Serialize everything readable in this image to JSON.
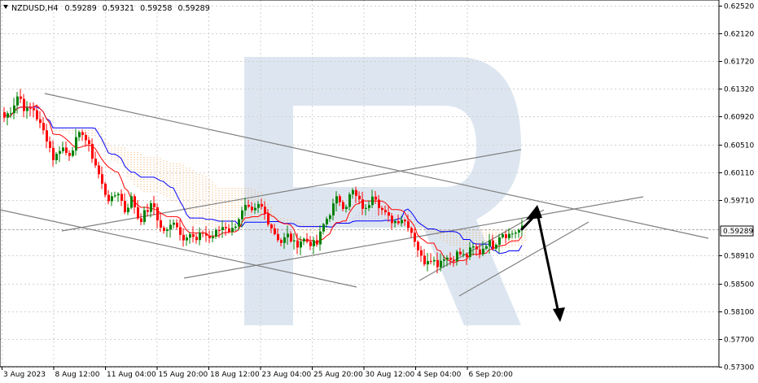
{
  "header": {
    "symbol": "NZDUSD,H4",
    "open": "0.59289",
    "high": "0.59321",
    "low": "0.59258",
    "close": "0.59289"
  },
  "chart_data": {
    "type": "candlestick",
    "title": "NZDUSD,H4",
    "ylim": [
      0.573,
      0.626
    ],
    "y_ticks": [
      "0.62520",
      "0.62120",
      "0.61720",
      "0.61320",
      "0.60920",
      "0.60510",
      "0.60110",
      "0.59710",
      "0.59289",
      "0.58910",
      "0.58500",
      "0.58100",
      "0.57700",
      "0.57300"
    ],
    "current_price": "0.59289",
    "x_ticks": [
      "3 Aug 2023",
      "8 Aug 12:00",
      "11 Aug 04:00",
      "15 Aug 20:00",
      "18 Aug 12:00",
      "23 Aug 04:00",
      "25 Aug 20:00",
      "30 Aug 12:00",
      "4 Sep 04:00",
      "6 Sep 20:00"
    ],
    "close_path": [
      0.609,
      0.6102,
      0.6125,
      0.6098,
      0.6105,
      0.608,
      0.606,
      0.6028,
      0.605,
      0.6035,
      0.6055,
      0.607,
      0.6045,
      0.6018,
      0.5985,
      0.5968,
      0.5985,
      0.5955,
      0.5975,
      0.594,
      0.5955,
      0.5965,
      0.593,
      0.5925,
      0.5945,
      0.5915,
      0.5925,
      0.591,
      0.5925,
      0.5915,
      0.5925,
      0.5935,
      0.5925,
      0.5945,
      0.596,
      0.595,
      0.5965,
      0.5945,
      0.5925,
      0.591,
      0.592,
      0.5905,
      0.5915,
      0.591,
      0.5905,
      0.5935,
      0.5955,
      0.5975,
      0.596,
      0.5985,
      0.5968,
      0.5955,
      0.5985,
      0.596,
      0.5945,
      0.594,
      0.5945,
      0.5935,
      0.591,
      0.588,
      0.589,
      0.5878,
      0.589,
      0.5885,
      0.5895,
      0.5888,
      0.5902,
      0.5895,
      0.591,
      0.5905,
      0.5925,
      0.592,
      0.5925,
      0.5929
    ],
    "colors": {
      "bull": "#008000",
      "bear": "#ff0000",
      "tenkan": "#ff0000",
      "kijun": "#0000ff",
      "cloud_up": "#c89bd2",
      "cloud_down": "#f0a860",
      "trend": "#808080",
      "arrow": "#000000",
      "watermark": "#dde6f0"
    },
    "annotation": "bearish forecast arrow"
  }
}
